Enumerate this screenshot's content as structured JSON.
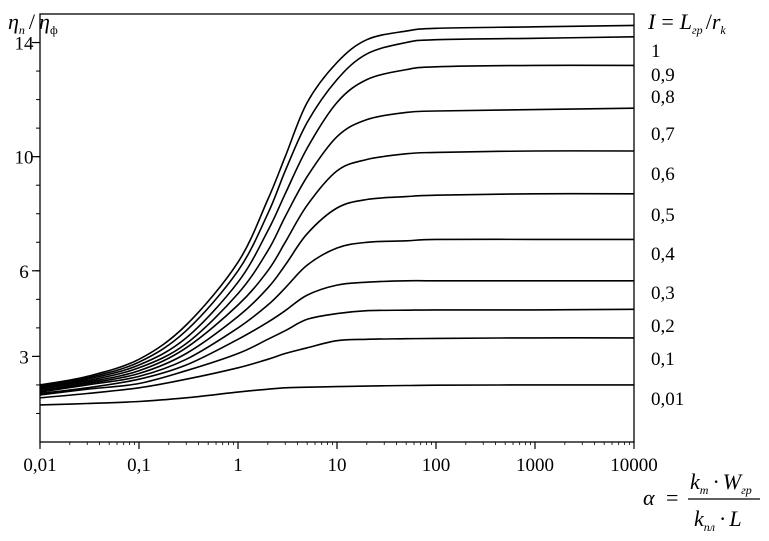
{
  "chart_data": {
    "type": "line",
    "x_scale": "log",
    "xlim": [
      0.01,
      10000
    ],
    "ylim": [
      0,
      15
    ],
    "grid": false,
    "x_ticks": [
      {
        "value": 0.01,
        "label": "0,01"
      },
      {
        "value": 0.1,
        "label": "0,1"
      },
      {
        "value": 1,
        "label": "1"
      },
      {
        "value": 10,
        "label": "10"
      },
      {
        "value": 100,
        "label": "100"
      },
      {
        "value": 1000,
        "label": "1000"
      },
      {
        "value": 10000,
        "label": "10000"
      }
    ],
    "y_ticks": [
      {
        "value": 3,
        "label": "3"
      },
      {
        "value": 6,
        "label": "6"
      },
      {
        "value": 10,
        "label": "10"
      },
      {
        "value": 14,
        "label": "14"
      }
    ],
    "ylabel": "η_п / η_ф",
    "ylabel_parts": {
      "eta1": "η",
      "sub1": "п",
      "slash": "/",
      "eta2": "η",
      "sub2": "ф"
    },
    "legend_title": "I = L_гр / r_k",
    "legend_title_parts": {
      "I": "I",
      "eq": "=",
      "L": "L",
      "subL": "гр",
      "slash": "/",
      "r": "r",
      "subr": "k"
    },
    "xlabel": "α = k_т · W_гр / (k_пл · L)",
    "xlabel_parts": {
      "alpha": "α",
      "eq": "=",
      "num_k": "k",
      "num_ksub": "т",
      "num_dot": "·",
      "num_W": "W",
      "num_Wsub": "гр",
      "den_k": "k",
      "den_ksub": "пл",
      "den_dot": "·",
      "den_L": "L"
    },
    "x": [
      0.01,
      0.03,
      0.1,
      0.3,
      1,
      2,
      3,
      5,
      10,
      20,
      50,
      100,
      1000,
      10000
    ],
    "series": [
      {
        "name": "1",
        "values": [
          2.0,
          2.3,
          2.9,
          4.1,
          6.3,
          8.5,
          10.0,
          11.9,
          13.3,
          14.1,
          14.4,
          14.5,
          14.55,
          14.6
        ]
      },
      {
        "name": "0,9",
        "values": [
          1.95,
          2.25,
          2.8,
          3.9,
          6.0,
          8.0,
          9.5,
          11.2,
          12.7,
          13.6,
          14.0,
          14.1,
          14.15,
          14.2
        ]
      },
      {
        "name": "0,8",
        "values": [
          1.9,
          2.2,
          2.7,
          3.65,
          5.6,
          7.4,
          8.7,
          10.3,
          11.9,
          12.7,
          13.05,
          13.15,
          13.2,
          13.2
        ]
      },
      {
        "name": "0,7",
        "values": [
          1.9,
          2.15,
          2.6,
          3.45,
          5.2,
          6.7,
          7.9,
          9.3,
          10.7,
          11.3,
          11.55,
          11.6,
          11.65,
          11.7
        ]
      },
      {
        "name": "0,6",
        "values": [
          1.85,
          2.1,
          2.5,
          3.3,
          4.8,
          6.0,
          7.0,
          8.3,
          9.5,
          9.9,
          10.1,
          10.15,
          10.2,
          10.2
        ]
      },
      {
        "name": "0,5",
        "values": [
          1.8,
          2.05,
          2.4,
          3.1,
          4.4,
          5.4,
          6.2,
          7.3,
          8.2,
          8.5,
          8.6,
          8.65,
          8.7,
          8.7
        ]
      },
      {
        "name": "0,4",
        "values": [
          1.75,
          2.0,
          2.3,
          2.9,
          4.0,
          4.8,
          5.4,
          6.2,
          6.8,
          7.0,
          7.05,
          7.1,
          7.1,
          7.1
        ]
      },
      {
        "name": "0,3",
        "values": [
          1.7,
          1.9,
          2.2,
          2.7,
          3.6,
          4.2,
          4.6,
          5.15,
          5.5,
          5.6,
          5.65,
          5.65,
          5.65,
          5.65
        ]
      },
      {
        "name": "0,2",
        "values": [
          1.65,
          1.85,
          2.05,
          2.5,
          3.1,
          3.6,
          3.9,
          4.3,
          4.5,
          4.6,
          4.62,
          4.63,
          4.63,
          4.65
        ]
      },
      {
        "name": "0,1",
        "values": [
          1.55,
          1.7,
          1.9,
          2.2,
          2.6,
          2.9,
          3.1,
          3.3,
          3.55,
          3.6,
          3.62,
          3.63,
          3.65,
          3.65
        ]
      },
      {
        "name": "0,01",
        "values": [
          1.3,
          1.35,
          1.42,
          1.55,
          1.75,
          1.85,
          1.9,
          1.92,
          1.94,
          1.96,
          1.98,
          1.99,
          2.0,
          2.0
        ]
      }
    ]
  }
}
